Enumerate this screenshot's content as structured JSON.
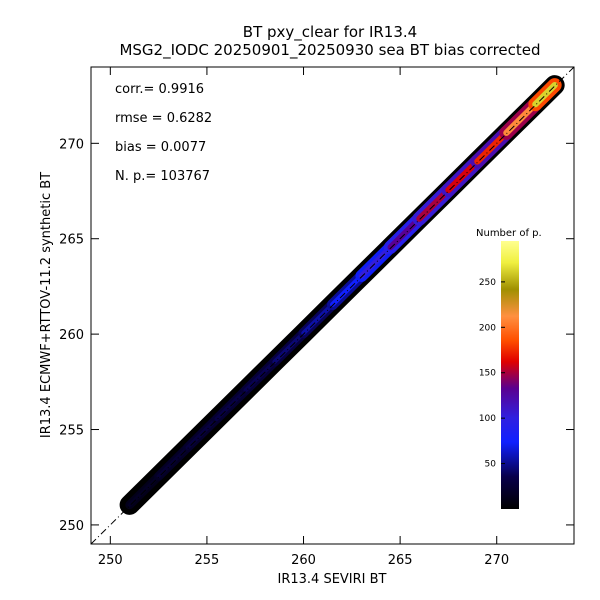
{
  "chart_data": {
    "type": "heatmap",
    "title": "BT pxy_clear for IR13.4",
    "subtitle": "MSG2_IODC 20250901_20250930 sea BT bias corrected",
    "xlabel": "IR13.4 SEVIRI BT",
    "ylabel": "IR13.4 ECMWF+RTTOV-11.2 synthetic BT",
    "xlim": [
      249,
      274
    ],
    "ylim": [
      249,
      274
    ],
    "x_ticks": [
      250,
      255,
      260,
      265,
      270
    ],
    "y_ticks": [
      250,
      255,
      260,
      265,
      270
    ],
    "x_tick_labels": [
      "250",
      "255",
      "260",
      "265",
      "270"
    ],
    "y_tick_labels": [
      "250",
      "255",
      "260",
      "265",
      "270"
    ],
    "diagonal": "1:1 dash-dot line",
    "stats": {
      "corr": "corr.= 0.9916",
      "rmse": "rmse = 0.6282",
      "bias": "bias = 0.0077",
      "np": "N. p.=  103767"
    },
    "colorbar": {
      "title": "Number of p.",
      "range": [
        0,
        295
      ],
      "ticks": [
        50,
        100,
        150,
        200,
        250
      ],
      "tick_labels": [
        "50",
        "100",
        "150",
        "200",
        "250"
      ]
    },
    "density_ridge": [
      {
        "x": 251.0,
        "count": 12
      },
      {
        "x": 252.5,
        "count": 22
      },
      {
        "x": 254.0,
        "count": 28
      },
      {
        "x": 255.5,
        "count": 32
      },
      {
        "x": 257.0,
        "count": 34
      },
      {
        "x": 258.5,
        "count": 40
      },
      {
        "x": 260.0,
        "count": 48
      },
      {
        "x": 261.5,
        "count": 62
      },
      {
        "x": 263.0,
        "count": 85
      },
      {
        "x": 264.5,
        "count": 120
      },
      {
        "x": 266.0,
        "count": 145
      },
      {
        "x": 267.5,
        "count": 155
      },
      {
        "x": 269.0,
        "count": 165
      },
      {
        "x": 270.5,
        "count": 180
      },
      {
        "x": 272.0,
        "count": 240
      },
      {
        "x": 273.0,
        "count": 285
      }
    ]
  }
}
